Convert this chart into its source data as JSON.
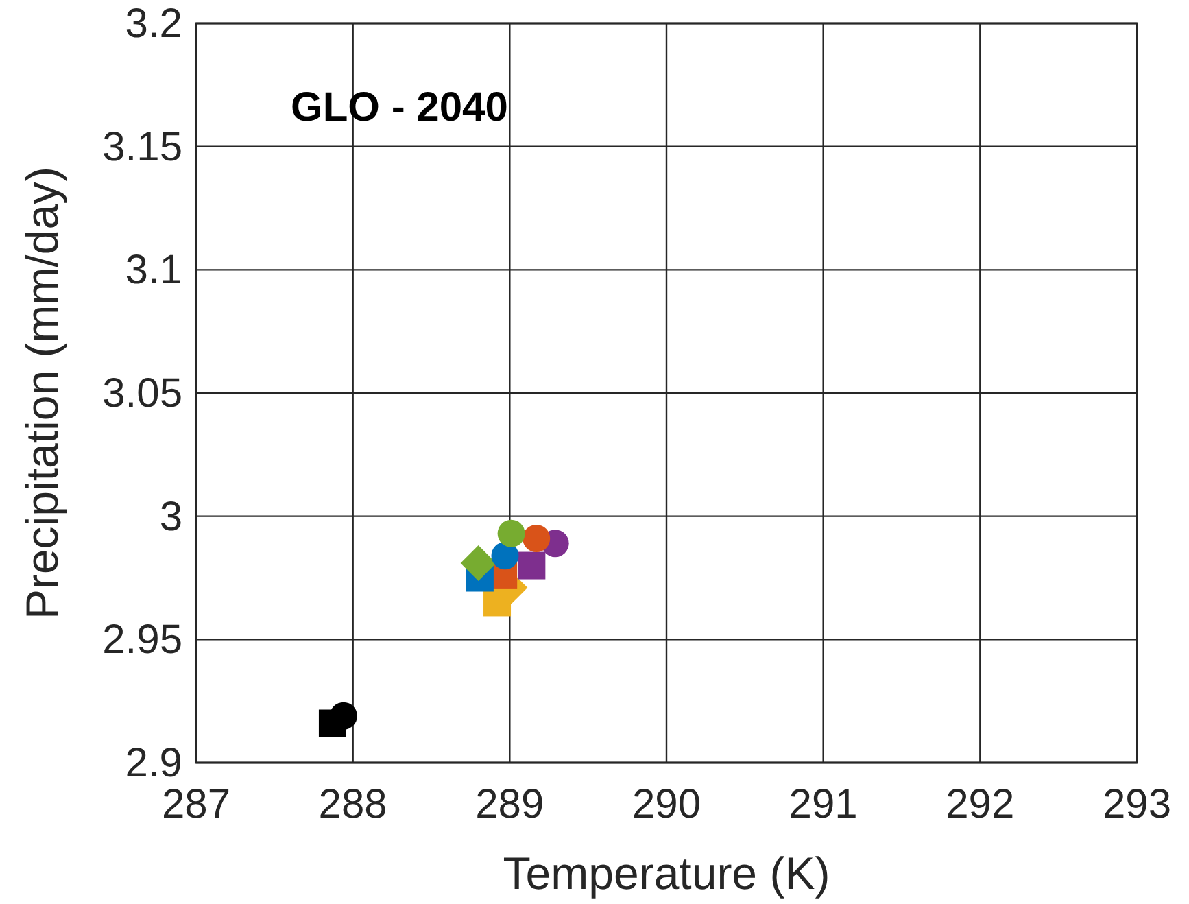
{
  "chart_data": {
    "type": "scatter",
    "title": "GLO - 2040",
    "xlabel": "Temperature (K)",
    "ylabel": "Precipitation (mm/day)",
    "xlim": [
      287,
      293
    ],
    "xticks": [
      287,
      288,
      289,
      290,
      291,
      292,
      293
    ],
    "ylim": [
      2.9,
      3.2
    ],
    "yticks": [
      2.9,
      2.95,
      3,
      3.05,
      3.1,
      3.15,
      3.2
    ],
    "grid": true,
    "series": [
      {
        "color": "#000000",
        "marker": "square",
        "x": [
          287.87
        ],
        "values": [
          2.916
        ]
      },
      {
        "color": "#000000",
        "marker": "circle",
        "x": [
          287.94
        ],
        "values": [
          2.919
        ]
      },
      {
        "color": "#edb120",
        "marker": "square",
        "x": [
          288.92
        ],
        "values": [
          2.965
        ]
      },
      {
        "color": "#edb120",
        "marker": "diamond",
        "x": [
          289.0
        ],
        "values": [
          2.971
        ]
      },
      {
        "color": "#d95319",
        "marker": "square",
        "x": [
          288.96
        ],
        "values": [
          2.976
        ]
      },
      {
        "color": "#0072bd",
        "marker": "square",
        "x": [
          288.81
        ],
        "values": [
          2.975
        ]
      },
      {
        "color": "#7e2f8e",
        "marker": "square",
        "x": [
          289.14
        ],
        "values": [
          2.98
        ]
      },
      {
        "color": "#77ac30",
        "marker": "diamond",
        "x": [
          288.8
        ],
        "values": [
          2.981
        ]
      },
      {
        "color": "#7e2f8e",
        "marker": "circle",
        "x": [
          289.29
        ],
        "values": [
          2.989
        ]
      },
      {
        "color": "#d95319",
        "marker": "circle",
        "x": [
          289.17
        ],
        "values": [
          2.991
        ]
      },
      {
        "color": "#0072bd",
        "marker": "circle",
        "x": [
          288.97
        ],
        "values": [
          2.984
        ]
      },
      {
        "color": "#77ac30",
        "marker": "circle",
        "x": [
          289.01
        ],
        "values": [
          2.993
        ]
      }
    ]
  }
}
